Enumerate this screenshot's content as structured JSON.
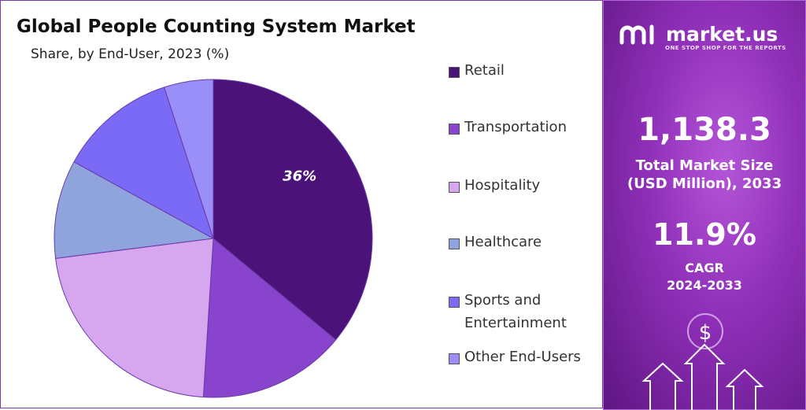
{
  "chart_data": {
    "type": "pie",
    "title": "Global People Counting System Market",
    "subtitle": "Share, by End-User, 2023 (%)",
    "series": [
      {
        "name": "Retail",
        "value": 36,
        "color": "#4b137a",
        "label": "36%"
      },
      {
        "name": "Transportation",
        "value": 15,
        "color": "#8844cc",
        "label": ""
      },
      {
        "name": "Hospitality",
        "value": 22,
        "color": "#d6a6ee",
        "label": ""
      },
      {
        "name": "Healthcare",
        "value": 10,
        "color": "#8fa3dc",
        "label": ""
      },
      {
        "name": "Sports and Entertainment",
        "value": 12,
        "color": "#7b6af5",
        "label": ""
      },
      {
        "name": "Other End-Users",
        "value": 5,
        "color": "#9a8ff8",
        "label": ""
      }
    ],
    "legend_position": "right"
  },
  "brand": {
    "name": "market.us",
    "tagline": "ONE STOP SHOP FOR THE REPORTS",
    "icon": "market-us-logo-icon"
  },
  "stats": {
    "market_size_value": "1,138.3",
    "market_size_label_1": "Total Market Size",
    "market_size_label_2": "(USD Million), 2033",
    "cagr_value": "11.9%",
    "cagr_label_1": "CAGR",
    "cagr_label_2": "2024-2033",
    "currency_symbol": "$"
  }
}
